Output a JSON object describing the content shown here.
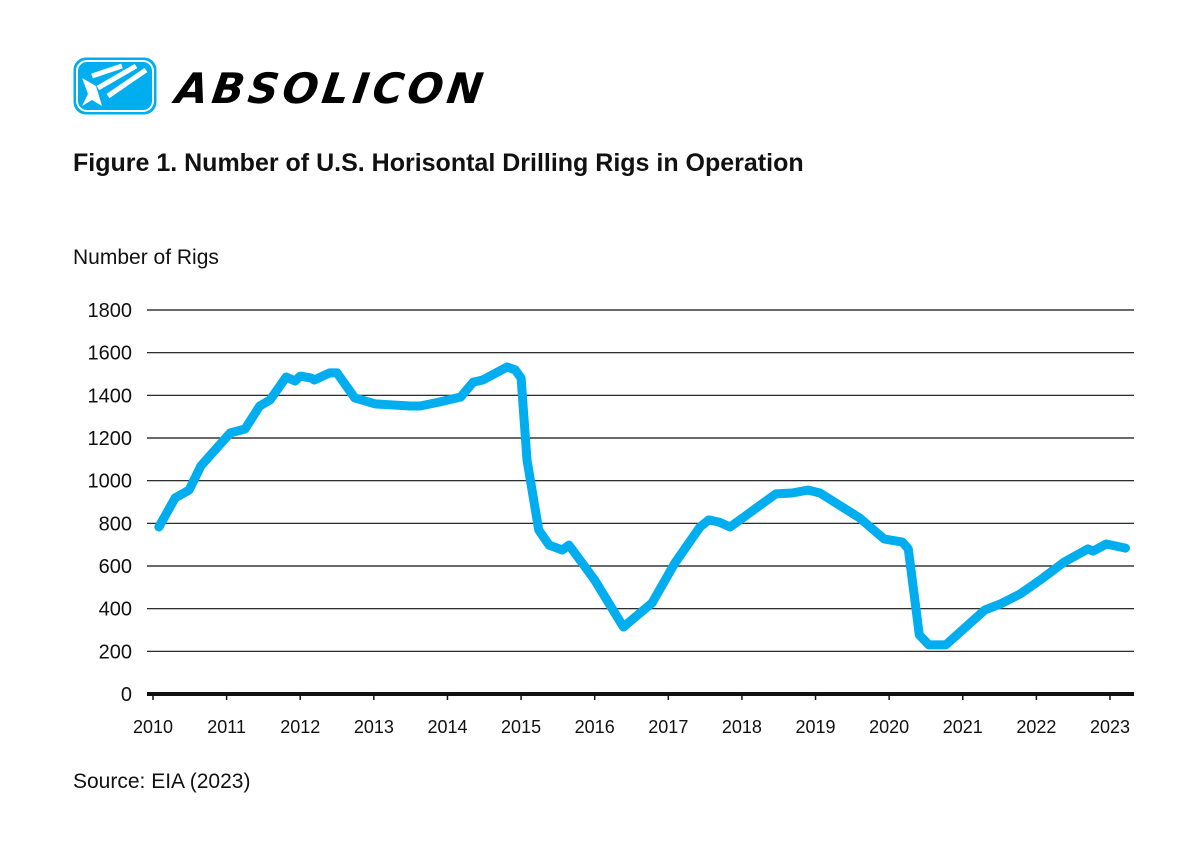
{
  "brand": {
    "name": "ABSOLICON",
    "accent": "#00AEEF"
  },
  "title": "Figure 1. Number of U.S. Horisontal Drilling Rigs in Operation",
  "source": "Source: EIA (2023)",
  "chart_data": {
    "type": "line",
    "title": "Figure 1. Number of U.S. Horisontal Drilling Rigs in Operation",
    "ylabel": "Number of Rigs",
    "xlabel": "",
    "ylim": [
      0,
      1800
    ],
    "xlim": [
      2010,
      2023
    ],
    "yticks": [
      "0",
      "200",
      "400",
      "600",
      "800",
      "1000",
      "1200",
      "1400",
      "1600",
      "1800"
    ],
    "xticks": [
      "2010",
      "2011",
      "2012",
      "2013",
      "2014",
      "2015",
      "2016",
      "2017",
      "2018",
      "2019",
      "2020",
      "2021",
      "2022",
      "2023"
    ],
    "grid": "horizontal",
    "line_color": "#00AEEF",
    "series": [
      {
        "x": [
          2010.08,
          2010.3,
          2010.49,
          2010.65,
          2011.05,
          2011.25,
          2011.45,
          2011.59,
          2011.81,
          2011.93,
          2012.0,
          2012.15,
          2012.19,
          2012.4,
          2012.5,
          2012.74,
          2013.02,
          2013.49,
          2013.63,
          2013.9,
          2014.18,
          2014.35,
          2014.48,
          2014.81,
          2014.92,
          2015.0,
          2015.08,
          2015.24,
          2015.38,
          2015.56,
          2015.65,
          2015.83,
          2016.0,
          2016.39,
          2016.78,
          2017.09,
          2017.43,
          2017.55,
          2017.69,
          2017.84,
          2018.46,
          2018.68,
          2018.9,
          2019.06,
          2019.6,
          2019.93,
          2020.18,
          2020.26,
          2020.41,
          2020.54,
          2020.77,
          2021.3,
          2021.51,
          2021.78,
          2022.05,
          2022.38,
          2022.7,
          2022.77,
          2022.95,
          2023.21
        ],
        "y": [
          783,
          919,
          956,
          1069,
          1224,
          1242,
          1350,
          1378,
          1486,
          1467,
          1490,
          1481,
          1472,
          1505,
          1505,
          1388,
          1360,
          1350,
          1350,
          1369,
          1392,
          1462,
          1472,
          1533,
          1519,
          1481,
          1097,
          769,
          698,
          675,
          698,
          614,
          534,
          314,
          427,
          614,
          783,
          816,
          806,
          783,
          938,
          942,
          956,
          942,
          825,
          727,
          712,
          680,
          277,
          230,
          230,
          394,
          422,
          469,
          534,
          619,
          680,
          670,
          703,
          684
        ]
      }
    ]
  }
}
